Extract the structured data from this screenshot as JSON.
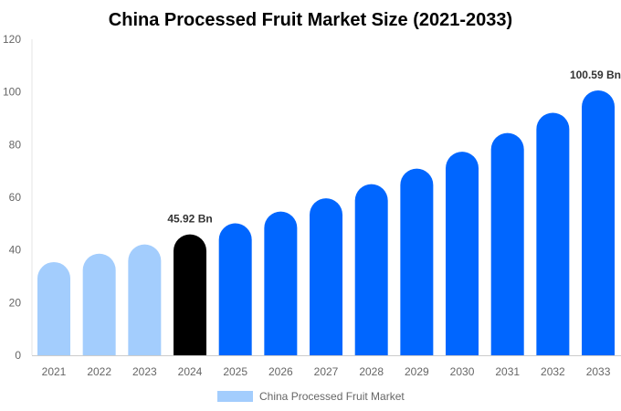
{
  "chart_data": {
    "type": "bar",
    "title": "China Processed Fruit Market Size (2021-2033)",
    "xlabel": "",
    "ylabel": "",
    "ylim": [
      0,
      120
    ],
    "yticks": [
      0,
      20,
      40,
      60,
      80,
      100,
      120
    ],
    "grid": false,
    "legend_position": "bottom",
    "categories": [
      "2021",
      "2022",
      "2023",
      "2024",
      "2025",
      "2026",
      "2027",
      "2028",
      "2029",
      "2030",
      "2031",
      "2032",
      "2033"
    ],
    "series": [
      {
        "name": "China Processed Fruit Market",
        "values": [
          35.4,
          38.6,
          42.1,
          45.92,
          50.1,
          54.6,
          59.6,
          65.0,
          70.9,
          77.3,
          84.4,
          92.1,
          100.59
        ]
      }
    ],
    "bar_colors": [
      "#a3cdfd",
      "#a3cdfd",
      "#a3cdfd",
      "#000000",
      "#0066ff",
      "#0066ff",
      "#0066ff",
      "#0066ff",
      "#0066ff",
      "#0066ff",
      "#0066ff",
      "#0066ff",
      "#0066ff"
    ],
    "legend_color": "#a3cdfd",
    "annotations": [
      {
        "category": "2024",
        "text": "45.92 Bn"
      },
      {
        "category": "2033",
        "text": "100.59 Bn"
      }
    ]
  }
}
